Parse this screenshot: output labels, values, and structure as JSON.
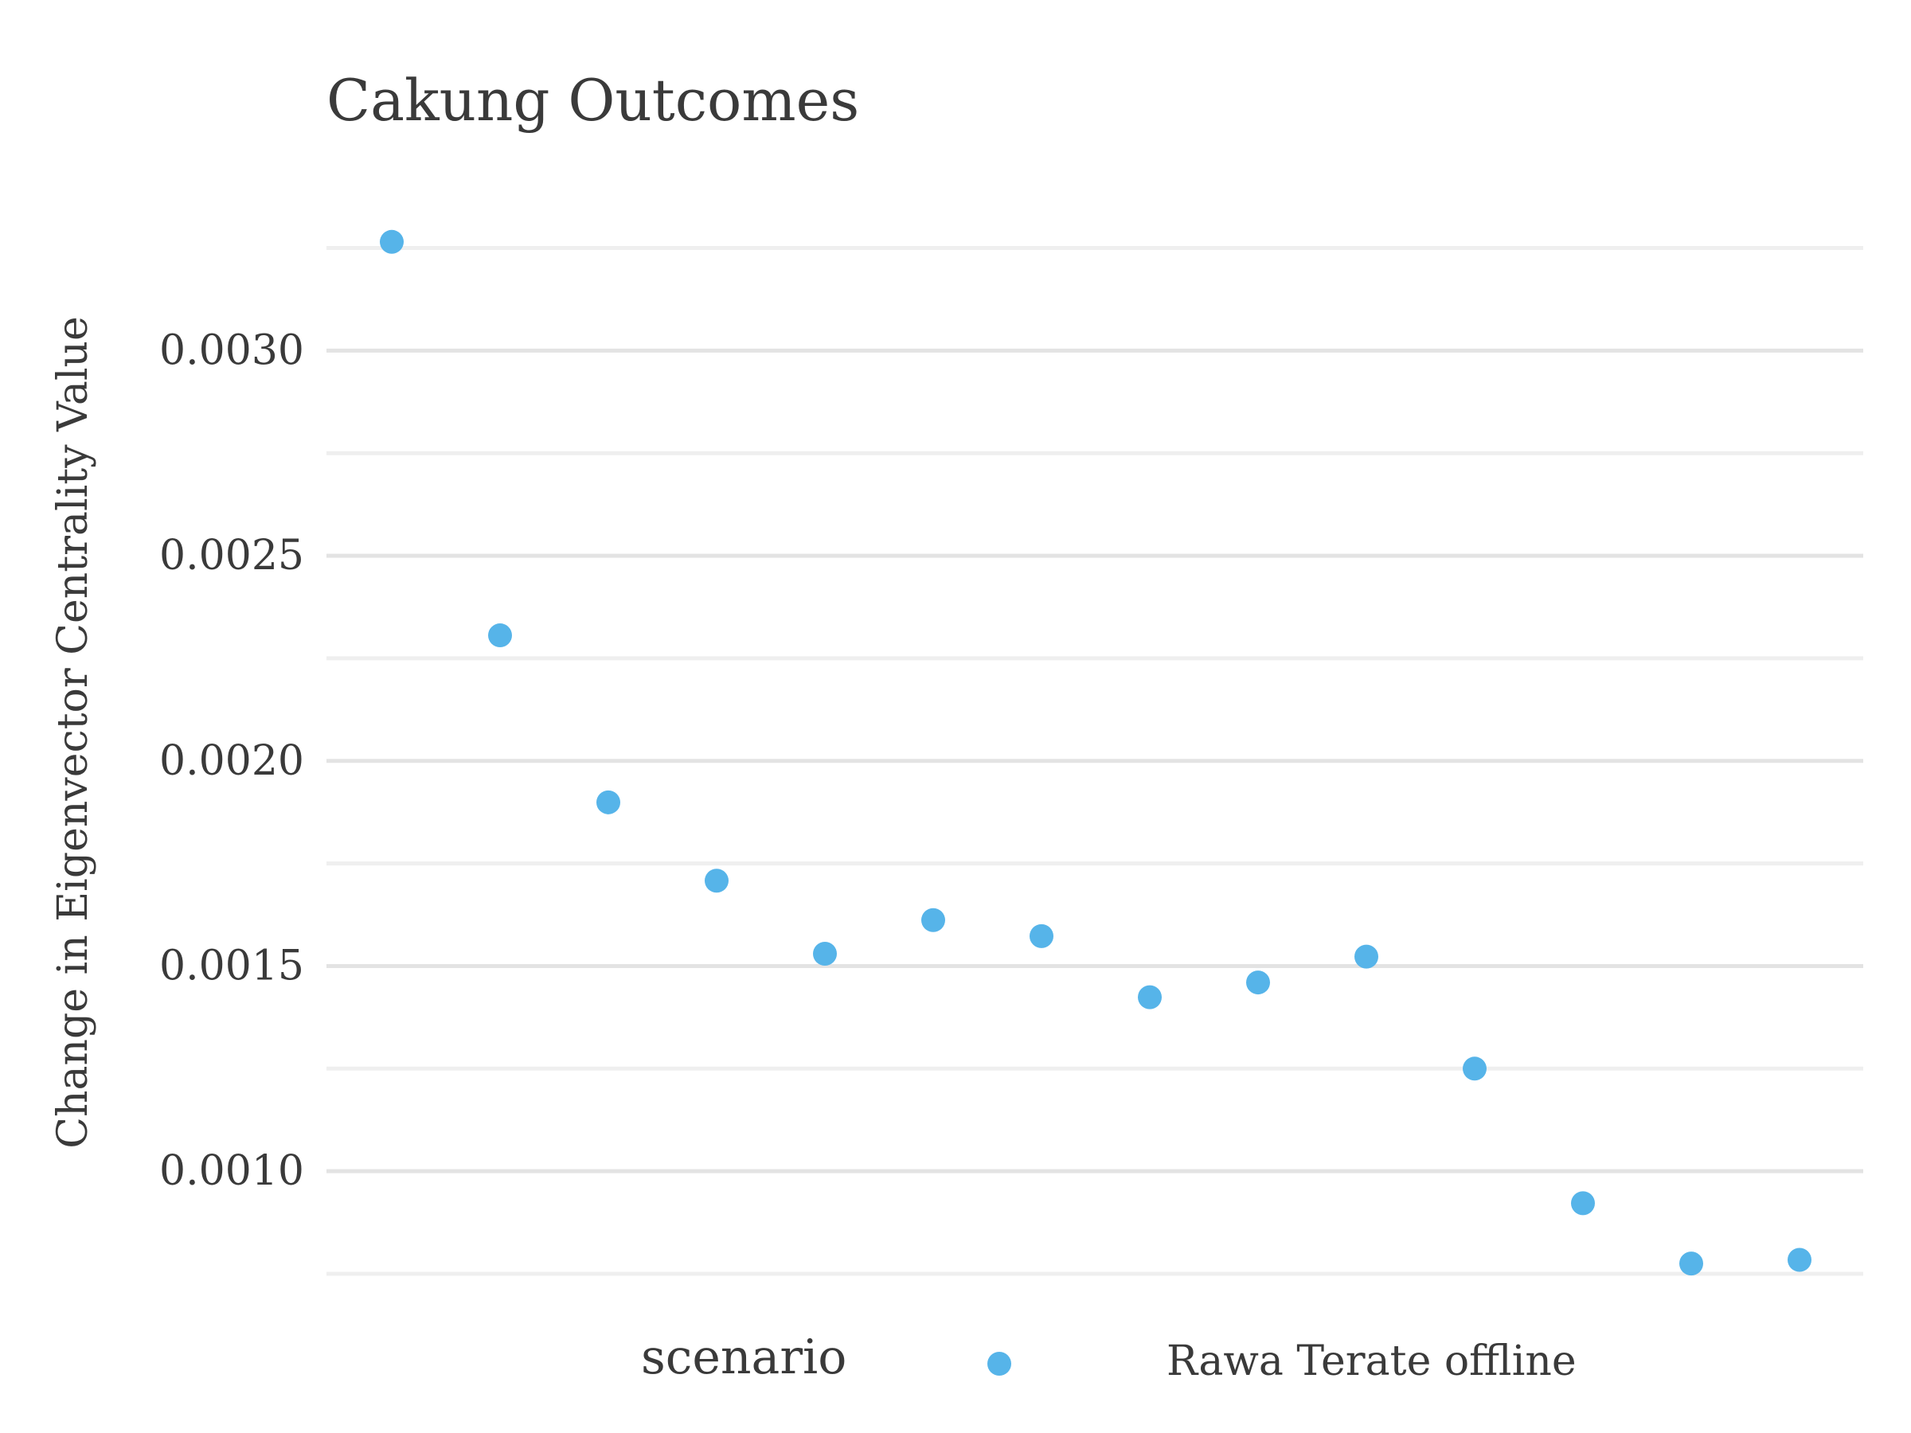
{
  "chart_data": {
    "type": "scatter",
    "title": "Cakung Outcomes",
    "xlabel": "",
    "ylabel": "Change in Eigenvector Centrality Value",
    "x": [
      1,
      2,
      3,
      4,
      5,
      6,
      7,
      8,
      9,
      10,
      11,
      12,
      13,
      14
    ],
    "series": [
      {
        "name": "Rawa Terate offline",
        "color": "#56B4E9",
        "values": [
          0.003265,
          0.002306,
          0.001899,
          0.001708,
          0.00153,
          0.001612,
          0.001573,
          0.001424,
          0.00146,
          0.001523,
          0.00125,
          0.000922,
          0.000775,
          0.000784
        ]
      }
    ],
    "ylim": [
      0.00075,
      0.00335
    ],
    "y_ticks": [
      0.001,
      0.0015,
      0.002,
      0.0025,
      0.003
    ],
    "y_tick_labels": [
      "0.0010",
      "0.0015",
      "0.0020",
      "0.0025",
      "0.0030"
    ],
    "x_tick_labels_shown": false,
    "grid": true,
    "legend_placement": "bottom",
    "legend_title": "scenario"
  }
}
